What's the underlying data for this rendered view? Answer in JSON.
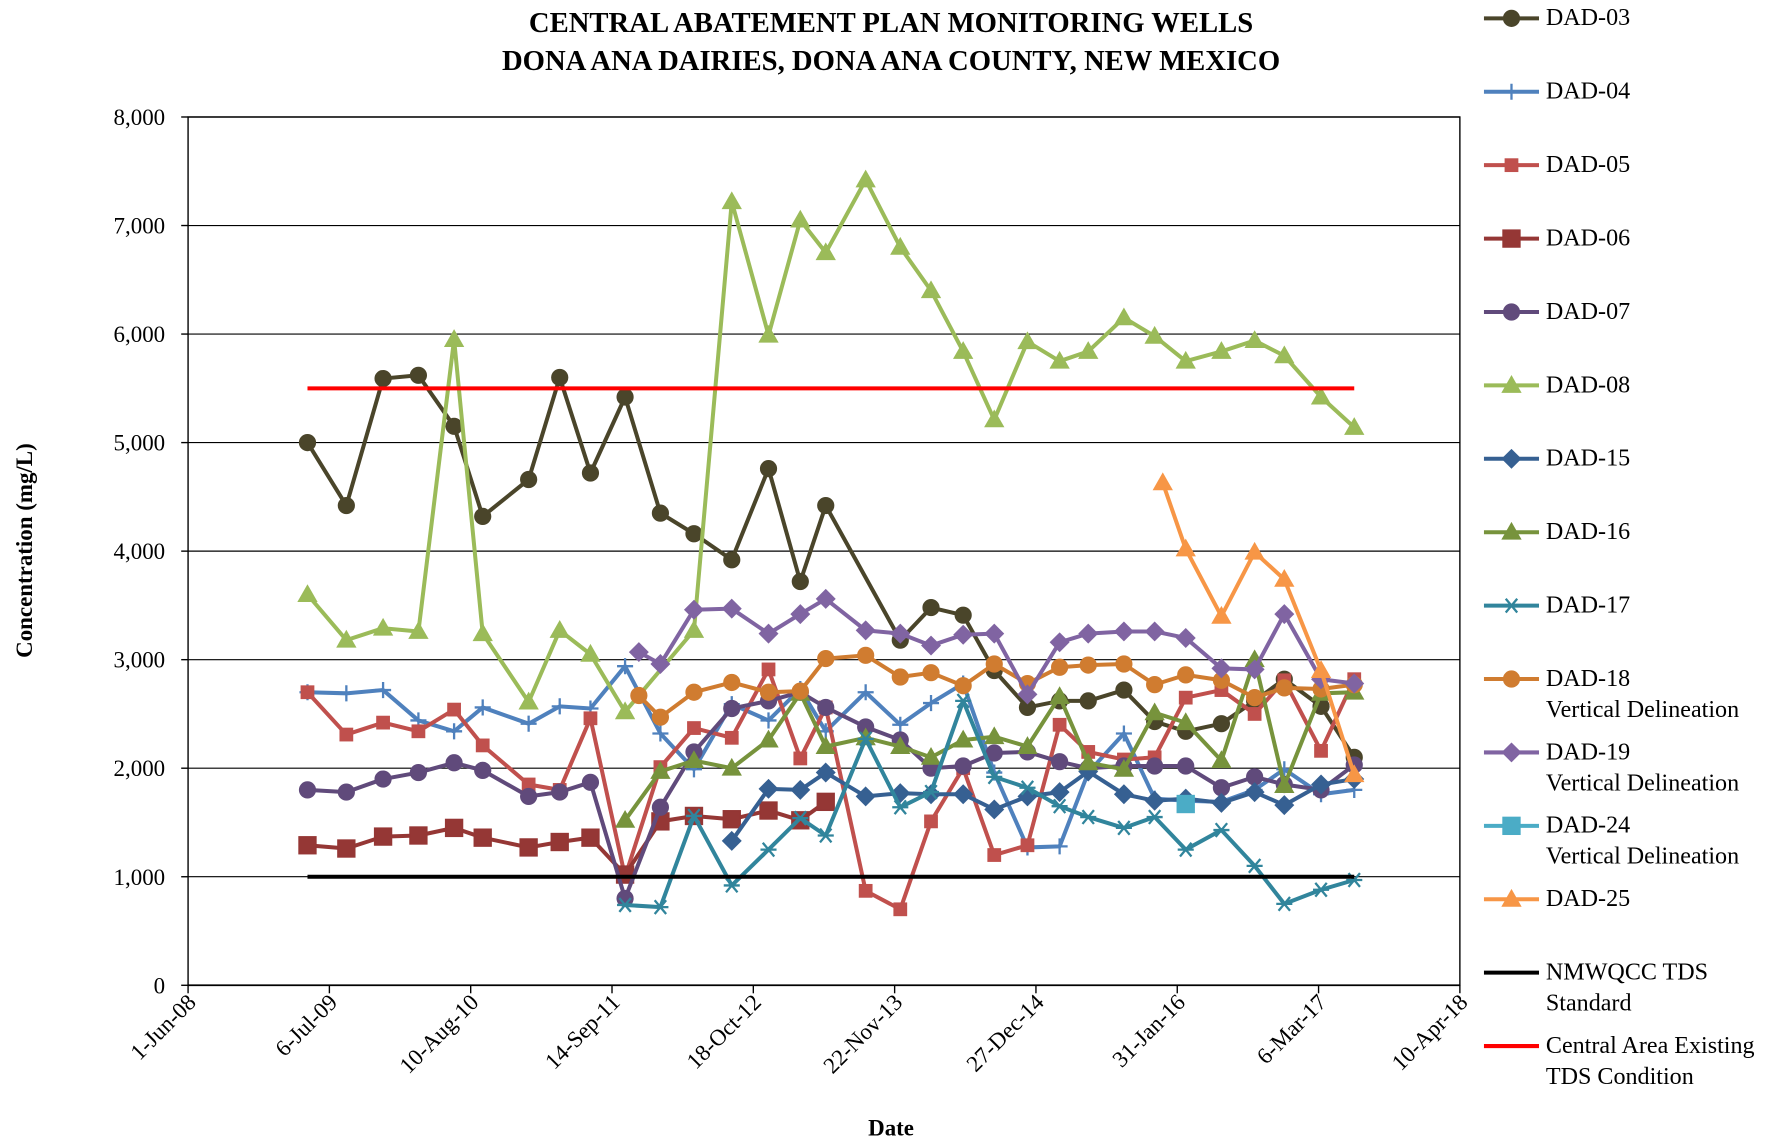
{
  "chart_data": {
    "type": "line",
    "title": [
      "CENTRAL ABATEMENT PLAN MONITORING WELLS",
      "DONA ANA DAIRIES, DONA ANA COUNTY, NEW MEXICO"
    ],
    "xlabel": "Date",
    "ylabel": "Concentration  (mg/L)",
    "xlim": [
      "1-Jun-08",
      "10-Apr-18"
    ],
    "xticks": [
      "1-Jun-08",
      "6-Jul-09",
      "10-Aug-10",
      "14-Sep-11",
      "18-Oct-12",
      "22-Nov-13",
      "27-Dec-14",
      "31-Jan-16",
      "6-Mar-17",
      "10-Apr-18"
    ],
    "ylim": [
      0,
      8000
    ],
    "yticks": [
      0,
      {
        "value": 1000,
        "label": "1,000"
      },
      {
        "value": 2000,
        "label": "2,000"
      },
      {
        "value": 3000,
        "label": "3,000"
      },
      {
        "value": 4000,
        "label": "4,000"
      },
      {
        "value": 5000,
        "label": "5,000"
      },
      {
        "value": 6000,
        "label": "6,000"
      },
      {
        "value": 7000,
        "label": "7,000"
      },
      {
        "value": 8000,
        "label": "8,000"
      }
    ],
    "grid": true,
    "legend": "right",
    "series": [
      {
        "name": "DAD-03",
        "color": "#4a452a",
        "marker": "circle",
        "x": [
          "5-May-09",
          "23-Aug-09",
          "5-Dec-09",
          "15-Mar-10",
          "24-Jun-10",
          "13-Sep-10",
          "21-Jan-11",
          "19-Apr-11",
          "15-Jul-11",
          "21-Oct-11",
          "29-Jan-12",
          "3-May-12",
          "18-Aug-12",
          "30-Nov-12",
          "28-Feb-13",
          "11-May-13",
          "8-Dec-13",
          "5-Mar-14",
          "4-Jun-14",
          "31-Aug-14",
          "3-Dec-14",
          "4-Mar-15",
          "24-May-15",
          "2-Sep-15",
          "28-Nov-15",
          "24-Feb-16",
          "4-Jun-16",
          "6-Sep-16",
          "29-Nov-16",
          "13-Mar-17",
          "15-Jun-17"
        ],
        "values": [
          5000,
          4420,
          5590,
          5620,
          5150,
          4320,
          4660,
          5600,
          4720,
          5420,
          4350,
          4160,
          3920,
          4760,
          3720,
          4420,
          3180,
          3480,
          3410,
          2900,
          2560,
          2620,
          2620,
          2720,
          2430,
          2340,
          2410,
          2620,
          2820,
          2570,
          2100
        ]
      },
      {
        "name": "DAD-04",
        "color": "#4f81bd",
        "marker": "plus",
        "x": [
          "5-May-09",
          "23-Aug-09",
          "5-Dec-09",
          "15-Mar-10",
          "24-Jun-10",
          "13-Sep-10",
          "21-Jan-11",
          "19-Apr-11",
          "15-Jul-11",
          "21-Oct-11",
          "29-Jan-12",
          "3-May-12",
          "18-Aug-12",
          "30-Nov-12",
          "28-Feb-13",
          "11-May-13",
          "1-Sep-13",
          "8-Dec-13",
          "5-Mar-14",
          "4-Jun-14",
          "31-Aug-14",
          "3-Dec-14",
          "4-Mar-15",
          "24-May-15",
          "2-Sep-15",
          "28-Nov-15",
          "24-Feb-16",
          "4-Jun-16",
          "6-Sep-16",
          "29-Nov-16",
          "13-Mar-17",
          "15-Jun-17"
        ],
        "values": [
          2700,
          2690,
          2720,
          2440,
          2340,
          2560,
          2410,
          2570,
          2550,
          2940,
          2320,
          1990,
          2590,
          2440,
          2730,
          2340,
          2700,
          2400,
          2600,
          2780,
          1960,
          1270,
          1280,
          1960,
          2320,
          1720,
          1700,
          1690,
          1800,
          1990,
          1760,
          1800
        ]
      },
      {
        "name": "DAD-05",
        "color": "#c0504d",
        "marker": "square",
        "x": [
          "5-May-09",
          "23-Aug-09",
          "5-Dec-09",
          "15-Mar-10",
          "24-Jun-10",
          "13-Sep-10",
          "21-Jan-11",
          "19-Apr-11",
          "15-Jul-11",
          "21-Oct-11",
          "29-Jan-12",
          "3-May-12",
          "18-Aug-12",
          "30-Nov-12",
          "28-Feb-13",
          "11-May-13",
          "1-Sep-13",
          "8-Dec-13",
          "5-Mar-14",
          "4-Jun-14",
          "31-Aug-14",
          "3-Dec-14",
          "4-Mar-15",
          "24-May-15",
          "2-Sep-15",
          "28-Nov-15",
          "24-Feb-16",
          "4-Jun-16",
          "6-Sep-16",
          "29-Nov-16",
          "13-Mar-17",
          "15-Jun-17"
        ],
        "values": [
          2700,
          2310,
          2420,
          2340,
          2540,
          2210,
          1850,
          1800,
          2460,
          1000,
          2010,
          2370,
          2280,
          2910,
          2090,
          2560,
          870,
          700,
          1510,
          2000,
          1200,
          1290,
          2400,
          2150,
          2080,
          2100,
          2650,
          2720,
          2500,
          2810,
          2160,
          2820
        ]
      },
      {
        "name": "DAD-06",
        "color": "#953735",
        "marker": "bigsquare",
        "x": [
          "5-May-09",
          "23-Aug-09",
          "5-Dec-09",
          "15-Mar-10",
          "24-Jun-10",
          "13-Sep-10",
          "21-Jan-11",
          "19-Apr-11",
          "15-Jul-11",
          "21-Oct-11",
          "29-Jan-12",
          "3-May-12",
          "18-Aug-12",
          "30-Nov-12",
          "28-Feb-13",
          "11-May-13"
        ],
        "values": [
          1290,
          1260,
          1370,
          1380,
          1450,
          1360,
          1270,
          1320,
          1360,
          1020,
          1510,
          1560,
          1530,
          1610,
          1520,
          1690
        ]
      },
      {
        "name": "DAD-07",
        "color": "#604a7b",
        "marker": "circle",
        "x": [
          "5-May-09",
          "23-Aug-09",
          "5-Dec-09",
          "15-Mar-10",
          "24-Jun-10",
          "13-Sep-10",
          "21-Jan-11",
          "19-Apr-11",
          "15-Jul-11",
          "21-Oct-11",
          "29-Jan-12",
          "3-May-12",
          "18-Aug-12",
          "30-Nov-12",
          "28-Feb-13",
          "11-May-13",
          "1-Sep-13",
          "8-Dec-13",
          "5-Mar-14",
          "4-Jun-14",
          "31-Aug-14",
          "3-Dec-14",
          "4-Mar-15",
          "24-May-15",
          "2-Sep-15",
          "28-Nov-15",
          "24-Feb-16",
          "4-Jun-16",
          "6-Sep-16",
          "29-Nov-16",
          "13-Mar-17",
          "15-Jun-17"
        ],
        "values": [
          1800,
          1780,
          1900,
          1960,
          2050,
          1980,
          1740,
          1780,
          1870,
          800,
          1640,
          2150,
          2550,
          2620,
          2700,
          2560,
          2380,
          2260,
          2000,
          2020,
          2140,
          2150,
          2060,
          2000,
          2020,
          2020,
          2020,
          1820,
          1920,
          1850,
          1800,
          2030
        ]
      },
      {
        "name": "DAD-08",
        "color": "#9bbb59",
        "marker": "triangle",
        "x": [
          "5-May-09",
          "23-Aug-09",
          "5-Dec-09",
          "15-Mar-10",
          "24-Jun-10",
          "13-Sep-10",
          "21-Jan-11",
          "19-Apr-11",
          "15-Jul-11",
          "21-Oct-11",
          "3-May-12",
          "18-Aug-12",
          "30-Nov-12",
          "28-Feb-13",
          "11-May-13",
          "1-Sep-13",
          "8-Dec-13",
          "5-Mar-14",
          "4-Jun-14",
          "31-Aug-14",
          "3-Dec-14",
          "4-Mar-15",
          "24-May-15",
          "2-Sep-15",
          "28-Nov-15",
          "24-Feb-16",
          "4-Jun-16",
          "6-Sep-16",
          "29-Nov-16",
          "13-Mar-17",
          "15-Jun-17"
        ],
        "values": [
          3600,
          3180,
          3290,
          3260,
          5950,
          3240,
          2610,
          3270,
          3050,
          2520,
          3270,
          7220,
          5990,
          7050,
          6750,
          7420,
          6800,
          6400,
          5840,
          5210,
          5930,
          5750,
          5840,
          6150,
          5980,
          5750,
          5840,
          5940,
          5800,
          5420,
          5140
        ]
      },
      {
        "name": "DAD-15",
        "color": "#366092",
        "marker": "diamond",
        "x": [
          "18-Aug-12",
          "30-Nov-12",
          "28-Feb-13",
          "11-May-13",
          "1-Sep-13",
          "8-Dec-13",
          "5-Mar-14",
          "4-Jun-14",
          "31-Aug-14",
          "3-Dec-14",
          "4-Mar-15",
          "24-May-15",
          "2-Sep-15",
          "28-Nov-15",
          "24-Feb-16",
          "4-Jun-16",
          "6-Sep-16",
          "29-Nov-16",
          "13-Mar-17",
          "15-Jun-17"
        ],
        "values": [
          1330,
          1810,
          1800,
          1960,
          1740,
          1770,
          1760,
          1760,
          1620,
          1740,
          1780,
          1970,
          1760,
          1700,
          1720,
          1680,
          1780,
          1660,
          1850,
          1900
        ]
      },
      {
        "name": "DAD-16",
        "color": "#77933c",
        "marker": "triangle",
        "x": [
          "21-Oct-11",
          "29-Jan-12",
          "3-May-12",
          "18-Aug-12",
          "30-Nov-12",
          "28-Feb-13",
          "11-May-13",
          "1-Sep-13",
          "8-Dec-13",
          "5-Mar-14",
          "4-Jun-14",
          "31-Aug-14",
          "3-Dec-14",
          "4-Mar-15",
          "24-May-15",
          "2-Sep-15",
          "28-Nov-15",
          "24-Feb-16",
          "4-Jun-16",
          "6-Sep-16",
          "29-Nov-16",
          "13-Mar-17",
          "15-Jun-17"
        ],
        "values": [
          1520,
          1970,
          2070,
          2000,
          2260,
          2690,
          2200,
          2280,
          2200,
          2100,
          2260,
          2290,
          2200,
          2660,
          2050,
          1990,
          2510,
          2420,
          2070,
          3000,
          1840,
          2690,
          2700
        ]
      },
      {
        "name": "DAD-17",
        "color": "#31859c",
        "marker": "asterisk",
        "x": [
          "21-Oct-11",
          "29-Jan-12",
          "3-May-12",
          "18-Aug-12",
          "30-Nov-12",
          "28-Feb-13",
          "11-May-13",
          "1-Sep-13",
          "8-Dec-13",
          "5-Mar-14",
          "4-Jun-14",
          "31-Aug-14",
          "3-Dec-14",
          "4-Mar-15",
          "24-May-15",
          "2-Sep-15",
          "28-Nov-15",
          "24-Feb-16",
          "4-Jun-16",
          "6-Sep-16",
          "29-Nov-16",
          "13-Mar-17",
          "15-Jun-17"
        ],
        "values": [
          740,
          720,
          1560,
          920,
          1250,
          1540,
          1380,
          2270,
          1640,
          1780,
          2620,
          1920,
          1820,
          1650,
          1550,
          1450,
          1550,
          1250,
          1430,
          1100,
          750,
          880,
          970
        ]
      },
      {
        "name": "DAD-18\nVertical Delineation",
        "color": "#d07c30",
        "marker": "circle",
        "x": [
          "29-Nov-11",
          "29-Jan-12",
          "3-May-12",
          "18-Aug-12",
          "30-Nov-12",
          "28-Feb-13",
          "11-May-13",
          "1-Sep-13",
          "8-Dec-13",
          "5-Mar-14",
          "4-Jun-14",
          "31-Aug-14",
          "3-Dec-14",
          "4-Mar-15",
          "24-May-15",
          "2-Sep-15",
          "28-Nov-15",
          "24-Feb-16",
          "4-Jun-16",
          "6-Sep-16",
          "29-Nov-16",
          "13-Mar-17",
          "15-Jun-17"
        ],
        "values": [
          2670,
          2470,
          2700,
          2790,
          2700,
          2710,
          3010,
          3040,
          2840,
          2880,
          2760,
          2960,
          2780,
          2930,
          2950,
          2960,
          2770,
          2860,
          2810,
          2650,
          2740,
          2730,
          2770
        ]
      },
      {
        "name": "DAD-19\nVertical Delineation",
        "color": "#8064a2",
        "marker": "diamond",
        "x": [
          "29-Nov-11",
          "29-Jan-12",
          "3-May-12",
          "18-Aug-12",
          "30-Nov-12",
          "28-Feb-13",
          "11-May-13",
          "1-Sep-13",
          "8-Dec-13",
          "5-Mar-14",
          "4-Jun-14",
          "31-Aug-14",
          "3-Dec-14",
          "4-Mar-15",
          "24-May-15",
          "2-Sep-15",
          "28-Nov-15",
          "24-Feb-16",
          "4-Jun-16",
          "6-Sep-16",
          "29-Nov-16",
          "13-Mar-17",
          "15-Jun-17"
        ],
        "values": [
          3070,
          2960,
          3460,
          3470,
          3240,
          3420,
          3560,
          3270,
          3240,
          3130,
          3230,
          3240,
          2680,
          3160,
          3240,
          3260,
          3260,
          3200,
          2920,
          2910,
          3420,
          2820,
          2780
        ]
      },
      {
        "name": "DAD-24\nVertical Delineation",
        "color": "#4bacc6",
        "marker": "bigsquare",
        "x": [
          "24-Feb-16"
        ],
        "values": [
          1670
        ]
      },
      {
        "name": "DAD-25",
        "color": "#f79646",
        "marker": "triangle",
        "x": [
          "21-Dec-15",
          "24-Feb-16",
          "4-Jun-16",
          "6-Sep-16",
          "29-Nov-16",
          "13-Mar-17",
          "15-Jun-17"
        ],
        "values": [
          4630,
          4020,
          3400,
          3990,
          3740,
          2900,
          1940
        ]
      },
      {
        "name": "NMWQCC TDS\nStandard",
        "color": "#000000",
        "x": [
          "5-May-09",
          "15-Jun-17"
        ],
        "values": [
          1000,
          1000
        ]
      },
      {
        "name": "Central Area Existing\nTDS Condition",
        "color": "#ff0000",
        "x": [
          "5-May-09",
          "15-Jun-17"
        ],
        "values": [
          5500,
          5500
        ]
      }
    ]
  }
}
